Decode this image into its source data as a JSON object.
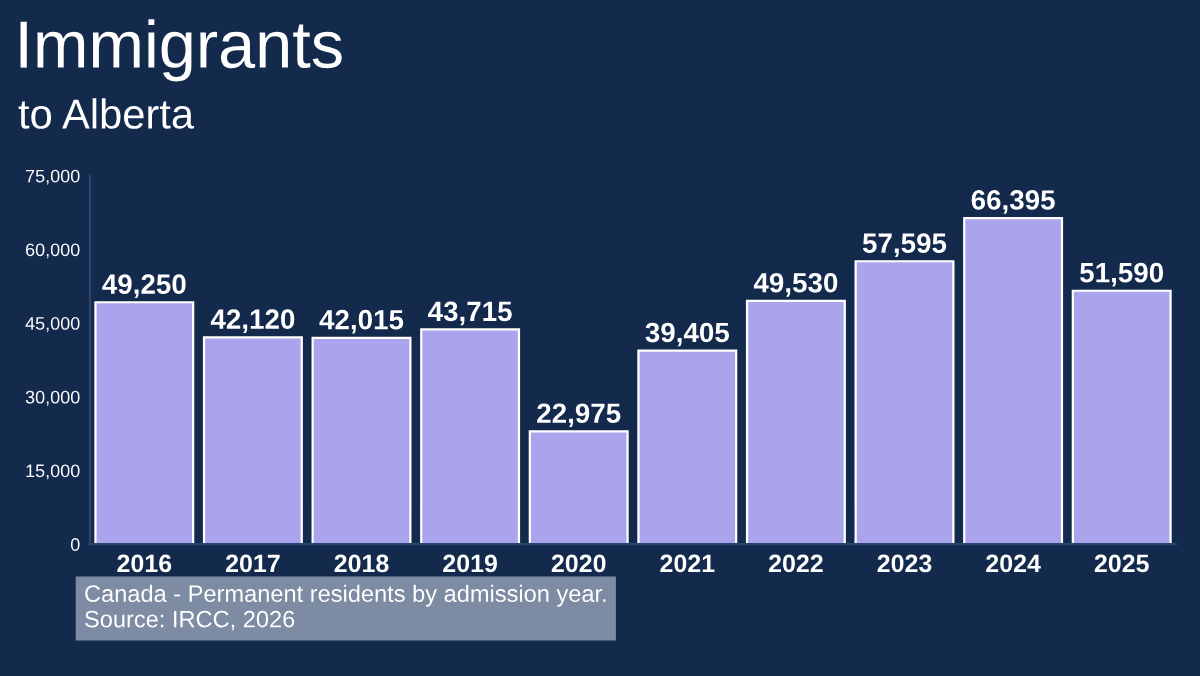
{
  "chart_data": {
    "type": "bar",
    "title": "Immigrants",
    "subtitle": "to Alberta",
    "categories": [
      "2016",
      "2017",
      "2018",
      "2019",
      "2020",
      "2021",
      "2022",
      "2023",
      "2024",
      "2025"
    ],
    "values": [
      49250,
      42120,
      42015,
      43715,
      22975,
      39405,
      49530,
      57595,
      66395,
      51590
    ],
    "color": "#aaa4ec",
    "ylim": [
      0,
      75000
    ],
    "yticks": [
      0,
      {
        "value": 15000,
        "label": "15,000"
      },
      {
        "value": 30000,
        "label": "30,000"
      },
      {
        "value": 45000,
        "label": "45,000"
      },
      {
        "value": 60000,
        "label": "60,000"
      },
      {
        "value": 75000,
        "label": "75,000"
      }
    ],
    "value_labels": [
      "49,250",
      "42,120",
      "42,015",
      "43,715",
      "22,975",
      "39,405",
      "49,530",
      "57,595",
      "66,395",
      "51,590"
    ],
    "grid": false,
    "annotations": [
      "Canada - Permanent residents by admission year.",
      "Source: IRCC, 2026"
    ]
  }
}
